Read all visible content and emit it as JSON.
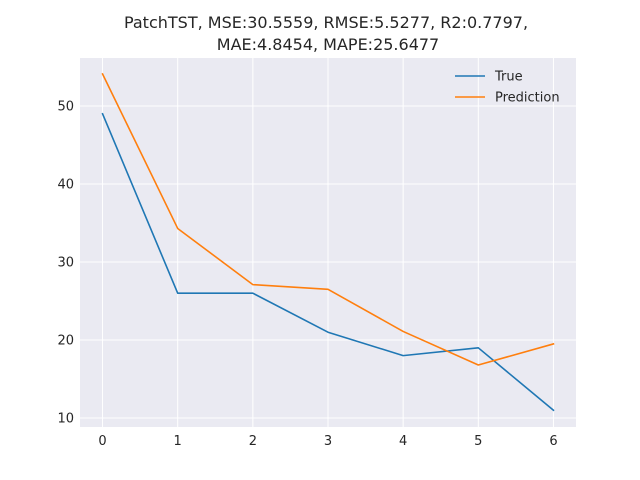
{
  "chart_data": {
    "type": "line",
    "title": "PatchTST, MSE:30.5559, RMSE:5.5277, R2:0.7797,",
    "title_line2": "MAE:4.8454, MAPE:25.6477",
    "xlabel": "",
    "ylabel": "",
    "x": [
      0,
      1,
      2,
      3,
      4,
      5,
      6
    ],
    "xlim": [
      -0.3,
      6.3
    ],
    "ylim": [
      8.85,
      56.15
    ],
    "x_ticks": [
      0,
      1,
      2,
      3,
      4,
      5,
      6
    ],
    "y_ticks": [
      10,
      20,
      30,
      40,
      50
    ],
    "grid": true,
    "legend_position": "top-right",
    "series": [
      {
        "name": "True",
        "color": "#1f77b4",
        "values": [
          49,
          26,
          26,
          21,
          18,
          19,
          11
        ]
      },
      {
        "name": "Prediction",
        "color": "#ff7f0e",
        "values": [
          54.1,
          34.3,
          27.1,
          26.5,
          21.1,
          16.8,
          19.5
        ]
      }
    ]
  },
  "colors": {
    "plot_background": "#eaeaf2",
    "grid": "#ffffff",
    "text": "#262626"
  }
}
